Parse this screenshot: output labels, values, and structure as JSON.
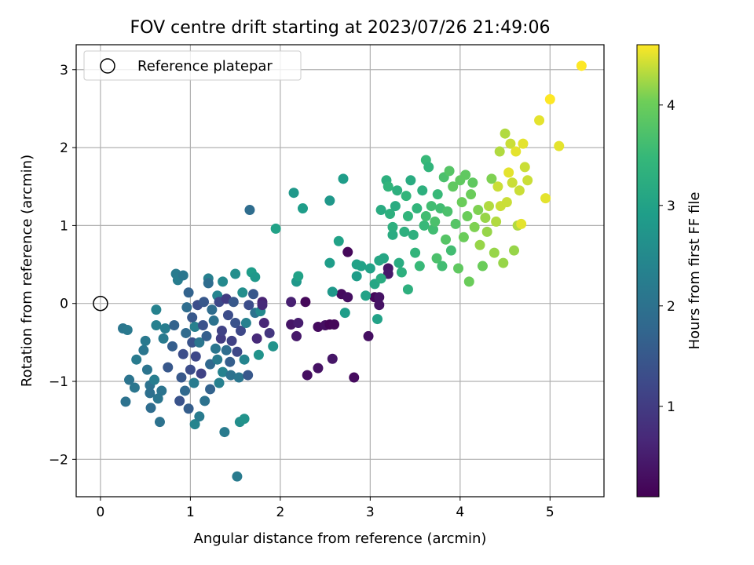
{
  "chart_data": {
    "type": "scatter",
    "title": "FOV centre drift starting at 2023/07/26 21:49:06",
    "xlabel": "Angular distance from reference (arcmin)",
    "ylabel": "Rotation from reference (arcmin)",
    "xlim": [
      -0.27,
      5.6
    ],
    "ylim": [
      -2.48,
      3.32
    ],
    "x_ticks": [
      0,
      1,
      2,
      3,
      4,
      5
    ],
    "x_tick_labels": [
      "0",
      "1",
      "2",
      "3",
      "4",
      "5"
    ],
    "y_ticks": [
      -2,
      -1,
      0,
      1,
      2,
      3
    ],
    "y_tick_labels": [
      "−2",
      "−1",
      "0",
      "1",
      "2",
      "3"
    ],
    "grid": true,
    "legend": {
      "position": "top-left",
      "entries": [
        {
          "label": "Reference platepar",
          "marker": "open-circle"
        }
      ]
    },
    "reference_point": {
      "x": 0,
      "y": 0
    },
    "colorbar": {
      "label": "Hours from first FF file",
      "colormap": "viridis",
      "range": [
        0.1,
        4.6
      ],
      "ticks": [
        1,
        2,
        3,
        4
      ],
      "tick_labels": [
        "1",
        "2",
        "3",
        "4"
      ]
    },
    "series": [
      {
        "color_by": "hours",
        "points": [
          [
            2.28,
            0.02,
            0.2
          ],
          [
            2.42,
            -0.3,
            0.25
          ],
          [
            2.5,
            -0.28,
            0.3
          ],
          [
            2.55,
            -0.27,
            0.15
          ],
          [
            2.6,
            -0.27,
            0.2
          ],
          [
            2.68,
            0.12,
            0.25
          ],
          [
            2.75,
            0.66,
            0.2
          ],
          [
            2.75,
            0.08,
            0.3
          ],
          [
            2.82,
            -0.95,
            0.25
          ],
          [
            2.98,
            -0.42,
            0.3
          ],
          [
            3.05,
            0.08,
            0.2
          ],
          [
            3.1,
            0.08,
            0.35
          ],
          [
            3.1,
            -0.02,
            0.35
          ],
          [
            3.2,
            0.45,
            0.4
          ],
          [
            3.2,
            0.38,
            0.45
          ],
          [
            2.3,
            -0.92,
            0.3
          ],
          [
            2.42,
            -0.83,
            0.35
          ],
          [
            2.58,
            -0.71,
            0.4
          ],
          [
            2.12,
            -0.27,
            0.4
          ],
          [
            2.18,
            -0.42,
            0.45
          ],
          [
            2.2,
            -0.25,
            0.5
          ],
          [
            2.12,
            0.02,
            0.55
          ],
          [
            1.8,
            0.02,
            0.6
          ],
          [
            1.82,
            -0.25,
            0.65
          ],
          [
            0.25,
            -0.32,
            2.1
          ],
          [
            0.3,
            -0.34,
            2.15
          ],
          [
            0.28,
            -1.26,
            2.0
          ],
          [
            0.32,
            -0.98,
            2.05
          ],
          [
            0.38,
            -1.08,
            2.1
          ],
          [
            0.4,
            -0.72,
            2.2
          ],
          [
            0.48,
            -0.6,
            2.1
          ],
          [
            0.5,
            -0.48,
            2.15
          ],
          [
            0.52,
            -0.85,
            2.05
          ],
          [
            0.55,
            -1.05,
            2.0
          ],
          [
            0.55,
            -1.15,
            1.95
          ],
          [
            0.56,
            -1.34,
            1.9
          ],
          [
            0.6,
            -0.98,
            2.25
          ],
          [
            0.62,
            -0.28,
            2.3
          ],
          [
            0.62,
            -0.08,
            2.35
          ],
          [
            0.64,
            -1.22,
            2.1
          ],
          [
            0.66,
            -1.52,
            2.0
          ],
          [
            0.68,
            -1.12,
            2.05
          ],
          [
            0.7,
            -0.45,
            2.2
          ],
          [
            0.72,
            -0.32,
            2.25
          ],
          [
            0.75,
            -0.82,
            1.5
          ],
          [
            0.8,
            -0.55,
            1.6
          ],
          [
            0.82,
            -0.28,
            1.7
          ],
          [
            0.84,
            0.38,
            2.2
          ],
          [
            0.86,
            0.3,
            2.25
          ],
          [
            0.88,
            -1.25,
            1.4
          ],
          [
            0.9,
            -0.95,
            1.5
          ],
          [
            0.92,
            -0.65,
            1.3
          ],
          [
            0.92,
            0.36,
            2.1
          ],
          [
            0.94,
            -1.12,
            1.8
          ],
          [
            0.95,
            -0.38,
            1.85
          ],
          [
            0.96,
            -0.05,
            1.9
          ],
          [
            0.98,
            -1.35,
            1.6
          ],
          [
            0.98,
            0.14,
            1.7
          ],
          [
            1.0,
            -0.85,
            1.3
          ],
          [
            1.02,
            -0.5,
            1.4
          ],
          [
            1.02,
            -0.18,
            1.5
          ],
          [
            1.04,
            -1.02,
            2.2
          ],
          [
            1.05,
            -0.3,
            2.3
          ],
          [
            1.05,
            -1.55,
            2.4
          ],
          [
            1.06,
            -0.68,
            1.2
          ],
          [
            1.08,
            -0.02,
            1.3
          ],
          [
            1.1,
            -0.5,
            2.1
          ],
          [
            1.1,
            -1.45,
            2.2
          ],
          [
            1.12,
            -0.9,
            1.1
          ],
          [
            1.14,
            -0.28,
            1.4
          ],
          [
            1.15,
            0.02,
            1.5
          ],
          [
            1.16,
            -1.25,
            2.0
          ],
          [
            1.18,
            -0.42,
            1.6
          ],
          [
            1.2,
            0.32,
            2.3
          ],
          [
            1.2,
            0.26,
            1.9
          ],
          [
            1.22,
            -0.78,
            1.8
          ],
          [
            1.22,
            -1.1,
            1.7
          ],
          [
            1.24,
            -0.08,
            1.9
          ],
          [
            1.26,
            -0.22,
            2.0
          ],
          [
            1.28,
            -0.58,
            2.1
          ],
          [
            1.3,
            0.1,
            2.4
          ],
          [
            1.3,
            -0.72,
            2.2
          ],
          [
            1.32,
            -1.02,
            2.3
          ],
          [
            1.32,
            0.02,
            1.2
          ],
          [
            1.34,
            -0.45,
            1.0
          ],
          [
            1.35,
            -0.35,
            1.1
          ],
          [
            1.36,
            0.28,
            2.5
          ],
          [
            1.36,
            -0.88,
            2.35
          ],
          [
            1.38,
            -1.65,
            2.2
          ],
          [
            1.4,
            -0.6,
            1.9
          ],
          [
            1.4,
            0.06,
            1.0
          ],
          [
            1.42,
            -0.15,
            1.3
          ],
          [
            1.44,
            -0.75,
            1.6
          ],
          [
            1.45,
            -0.92,
            2.0
          ],
          [
            1.46,
            -0.48,
            1.1
          ],
          [
            1.48,
            0.02,
            1.5
          ],
          [
            1.5,
            0.38,
            2.6
          ],
          [
            1.5,
            -0.25,
            1.4
          ],
          [
            1.52,
            -0.62,
            1.2
          ],
          [
            1.52,
            -2.22,
            2.2
          ],
          [
            1.54,
            -0.95,
            2.1
          ],
          [
            1.55,
            -1.52,
            2.6
          ],
          [
            1.56,
            -0.35,
            1.2
          ],
          [
            1.58,
            0.14,
            2.6
          ],
          [
            1.6,
            -0.72,
            2.4
          ],
          [
            1.6,
            -1.48,
            2.7
          ],
          [
            1.62,
            -0.25,
            2.3
          ],
          [
            1.64,
            -0.92,
            1.5
          ],
          [
            1.65,
            -0.02,
            1.3
          ],
          [
            1.66,
            1.2,
            1.9
          ],
          [
            1.68,
            0.4,
            2.9
          ],
          [
            1.7,
            0.12,
            1.5
          ],
          [
            1.72,
            -0.12,
            2.0
          ],
          [
            1.72,
            0.34,
            2.8
          ],
          [
            1.74,
            -0.45,
            0.7
          ],
          [
            1.76,
            -0.66,
            2.7
          ],
          [
            1.78,
            -0.1,
            2.5
          ],
          [
            1.8,
            -0.02,
            0.7
          ],
          [
            1.88,
            -0.38,
            0.9
          ],
          [
            1.92,
            -0.55,
            2.7
          ],
          [
            1.95,
            0.96,
            3.0
          ],
          [
            2.15,
            1.42,
            2.8
          ],
          [
            2.18,
            0.28,
            2.8
          ],
          [
            2.2,
            0.35,
            3.0
          ],
          [
            2.25,
            1.22,
            2.9
          ],
          [
            2.55,
            1.32,
            2.8
          ],
          [
            2.55,
            0.52,
            2.9
          ],
          [
            2.58,
            0.15,
            2.8
          ],
          [
            2.65,
            0.8,
            3.0
          ],
          [
            2.7,
            1.6,
            2.9
          ],
          [
            2.72,
            -0.12,
            2.9
          ],
          [
            2.85,
            0.35,
            2.9
          ],
          [
            2.9,
            0.48,
            3.0
          ],
          [
            2.85,
            0.5,
            3.0
          ],
          [
            2.95,
            0.1,
            3.0
          ],
          [
            3.0,
            0.45,
            3.0
          ],
          [
            3.05,
            0.25,
            3.1
          ],
          [
            3.08,
            -0.2,
            3.0
          ],
          [
            3.1,
            0.55,
            3.1
          ],
          [
            3.12,
            1.2,
            3.2
          ],
          [
            3.12,
            0.32,
            3.2
          ],
          [
            3.15,
            0.58,
            3.1
          ],
          [
            3.18,
            1.58,
            3.3
          ],
          [
            3.2,
            1.5,
            3.4
          ],
          [
            3.22,
            1.15,
            3.3
          ],
          [
            3.25,
            0.98,
            3.3
          ],
          [
            3.25,
            0.88,
            3.2
          ],
          [
            3.28,
            1.25,
            3.2
          ],
          [
            3.3,
            1.45,
            3.3
          ],
          [
            3.32,
            0.52,
            3.2
          ],
          [
            3.35,
            0.4,
            3.3
          ],
          [
            3.38,
            0.92,
            3.3
          ],
          [
            3.4,
            1.38,
            3.4
          ],
          [
            3.42,
            1.12,
            3.4
          ],
          [
            3.42,
            0.18,
            3.3
          ],
          [
            3.45,
            1.58,
            3.2
          ],
          [
            3.48,
            0.88,
            3.3
          ],
          [
            3.5,
            0.65,
            3.4
          ],
          [
            3.52,
            1.22,
            3.4
          ],
          [
            3.55,
            0.48,
            3.5
          ],
          [
            3.58,
            1.45,
            3.3
          ],
          [
            3.6,
            1.0,
            3.5
          ],
          [
            3.62,
            1.84,
            3.5
          ],
          [
            3.62,
            1.12,
            3.6
          ],
          [
            3.65,
            1.75,
            3.4
          ],
          [
            3.68,
            1.25,
            3.6
          ],
          [
            3.7,
            0.95,
            3.6
          ],
          [
            3.72,
            1.05,
            3.7
          ],
          [
            3.74,
            0.58,
            3.7
          ],
          [
            3.75,
            1.4,
            3.5
          ],
          [
            3.78,
            1.22,
            3.6
          ],
          [
            3.8,
            0.48,
            3.6
          ],
          [
            3.82,
            1.62,
            3.7
          ],
          [
            3.84,
            0.82,
            3.8
          ],
          [
            3.86,
            1.18,
            3.7
          ],
          [
            3.88,
            1.7,
            3.8
          ],
          [
            3.9,
            0.68,
            3.6
          ],
          [
            3.92,
            1.5,
            3.9
          ],
          [
            3.95,
            1.02,
            3.8
          ],
          [
            3.98,
            0.45,
            3.9
          ],
          [
            4.0,
            1.58,
            3.9
          ],
          [
            4.02,
            1.3,
            4.0
          ],
          [
            4.04,
            0.85,
            4.0
          ],
          [
            4.06,
            1.65,
            3.9
          ],
          [
            4.08,
            1.12,
            4.0
          ],
          [
            4.1,
            0.28,
            4.0
          ],
          [
            4.12,
            1.4,
            4.0
          ],
          [
            4.14,
            1.55,
            3.9
          ],
          [
            4.16,
            0.98,
            4.1
          ],
          [
            4.2,
            1.2,
            4.1
          ],
          [
            4.22,
            0.75,
            4.2
          ],
          [
            4.25,
            0.48,
            4.0
          ],
          [
            4.28,
            1.1,
            4.2
          ],
          [
            4.3,
            0.92,
            4.2
          ],
          [
            4.32,
            1.25,
            4.3
          ],
          [
            4.35,
            1.6,
            4.1
          ],
          [
            4.38,
            0.65,
            4.2
          ],
          [
            4.4,
            1.05,
            4.3
          ],
          [
            4.42,
            1.5,
            4.4
          ],
          [
            4.44,
            1.95,
            4.3
          ],
          [
            4.45,
            1.25,
            4.4
          ],
          [
            4.48,
            0.52,
            4.2
          ],
          [
            4.5,
            2.18,
            4.3
          ],
          [
            4.52,
            1.3,
            4.4
          ],
          [
            4.54,
            1.68,
            4.5
          ],
          [
            4.56,
            2.05,
            4.4
          ],
          [
            4.58,
            1.55,
            4.4
          ],
          [
            4.6,
            0.68,
            4.2
          ],
          [
            4.62,
            1.95,
            4.5
          ],
          [
            4.64,
            1.0,
            4.3
          ],
          [
            4.66,
            1.45,
            4.4
          ],
          [
            4.68,
            1.02,
            4.5
          ],
          [
            4.7,
            2.05,
            4.5
          ],
          [
            4.72,
            1.75,
            4.4
          ],
          [
            4.75,
            1.58,
            4.4
          ],
          [
            4.88,
            2.35,
            4.5
          ],
          [
            4.95,
            1.35,
            4.5
          ],
          [
            5.0,
            2.62,
            4.6
          ],
          [
            5.1,
            2.02,
            4.5
          ],
          [
            5.35,
            3.05,
            4.6
          ]
        ]
      }
    ]
  }
}
